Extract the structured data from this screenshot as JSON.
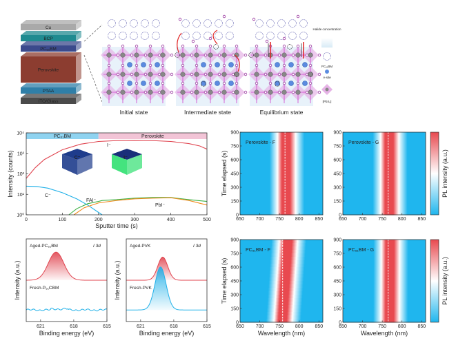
{
  "stack": {
    "layers": [
      {
        "label": "Cu",
        "color": "#a9a9a9"
      },
      {
        "label": "BCP",
        "color": "#1f8b90"
      },
      {
        "label": "PC₆₁BM",
        "color": "#3b4a8c"
      },
      {
        "label": "Perovskite",
        "color": "#8c3d30"
      },
      {
        "label": "PTAA",
        "color": "#2f7fa8"
      },
      {
        "label": "ITO/Glass",
        "color": "#4a4a4a"
      }
    ]
  },
  "schematic": {
    "states": [
      "Initial state",
      "Intermediate state",
      "Equilibrium state"
    ],
    "legend": {
      "halide": "Halide concentration",
      "pcbm": "PC₆₁BM",
      "asite": "A-site",
      "octahedron": "[PbX₆]"
    }
  },
  "chart_data": [
    {
      "type": "line",
      "xlabel": "Sputter time (s)",
      "ylabel": "Intensity (counts)",
      "xlim": [
        0,
        500
      ],
      "xticks": [
        "0",
        "100",
        "200",
        "300",
        "400",
        "500"
      ],
      "ylim": [
        1,
        10000
      ],
      "yscale": "log",
      "yticks": [
        "10⁰",
        "10¹",
        "10²",
        "10³",
        "10⁴"
      ],
      "bands": [
        {
          "label": "PC₆₁BM",
          "range": [
            0,
            200
          ],
          "color": "#8fd3f0"
        },
        {
          "label": "Perovskite",
          "range": [
            200,
            500
          ],
          "color": "#f2c4d6"
        }
      ],
      "insets": [
        "C⁻",
        "I⁻"
      ],
      "series": [
        {
          "name": "I⁻",
          "color": "#e0444f",
          "points": [
            [
              0,
              60
            ],
            [
              25,
              200
            ],
            [
              50,
              500
            ],
            [
              100,
              1500
            ],
            [
              150,
              2800
            ],
            [
              200,
              3800
            ],
            [
              250,
              4200
            ],
            [
              300,
              4300
            ],
            [
              350,
              4200
            ],
            [
              400,
              3800
            ],
            [
              450,
              3000
            ],
            [
              480,
              2300
            ],
            [
              500,
              1600
            ]
          ]
        },
        {
          "name": "C⁻",
          "color": "#1fb0e8",
          "points": [
            [
              0,
              25
            ],
            [
              30,
              24
            ],
            [
              60,
              20
            ],
            [
              100,
              12
            ],
            [
              140,
              6
            ],
            [
              170,
              3
            ],
            [
              195,
              1.5
            ],
            [
              210,
              1
            ]
          ]
        },
        {
          "name": "FAI⁻",
          "color": "#3cb043",
          "points": [
            [
              118,
              1
            ],
            [
              140,
              2
            ],
            [
              170,
              3.5
            ],
            [
              200,
              4.5
            ],
            [
              210,
              5
            ],
            [
              250,
              5.5
            ],
            [
              300,
              6.5
            ],
            [
              350,
              7
            ],
            [
              400,
              7
            ],
            [
              450,
              5.5
            ],
            [
              500,
              4.5
            ]
          ]
        },
        {
          "name": "PbI⁻",
          "color": "#f08a1c",
          "points": [
            [
              132,
              1
            ],
            [
              160,
              2.2
            ],
            [
              200,
              3.8
            ],
            [
              250,
              5
            ],
            [
              300,
              6
            ],
            [
              350,
              6.5
            ],
            [
              400,
              6.8
            ],
            [
              450,
              5
            ],
            [
              500,
              3
            ]
          ]
        }
      ]
    },
    {
      "type": "line",
      "xlabel": "Binding energy (eV)",
      "ylabel": "Intensity (a.u.)",
      "xlim": [
        622.3,
        615
      ],
      "xticks": [
        "621",
        "618",
        "615"
      ],
      "annotation": "I 3d",
      "series": [
        {
          "name": "Aged-PC₆₁BM",
          "color": "#e0444f",
          "peak_center": 619.6,
          "sigma": 0.7,
          "height": 0.85
        },
        {
          "name": "Fresh-P₆₁CBM",
          "color": "#1fb0e8",
          "peak_center": null,
          "sigma": null,
          "height": 0
        }
      ]
    },
    {
      "type": "line",
      "xlabel": "Binding energy (eV)",
      "ylabel": "Intensity (a.u.)",
      "xlim": [
        622.3,
        615
      ],
      "xticks": [
        "621",
        "618",
        "615"
      ],
      "annotation": "I 3d",
      "series": [
        {
          "name": "Aged-PVK",
          "color": "#e0444f",
          "peak_center": 619.0,
          "sigma": 0.45,
          "height": 0.7
        },
        {
          "name": "Fresh-PVK",
          "color": "#1fb0e8",
          "peak_center": 619.2,
          "sigma": 0.5,
          "height": 1.3
        }
      ]
    },
    {
      "type": "heatmap",
      "title": "Perovskite - F",
      "xlabel": "",
      "ylabel": "Time elapsed (s)",
      "xlim": [
        650,
        860
      ],
      "ylim": [
        0,
        900
      ],
      "peak_nm_start": 765,
      "peak_nm_end": 765,
      "dashed_line_nm": 764
    },
    {
      "type": "heatmap",
      "title": "Perovskite - G",
      "xlabel": "",
      "ylabel": "",
      "xlim": [
        650,
        860
      ],
      "ylim": [
        0,
        900
      ],
      "peak_nm_start": 766,
      "peak_nm_end": 766,
      "dashed_line_nm": 765
    },
    {
      "type": "heatmap",
      "title": "PC₆₁BM - F",
      "xlabel": "Wavelength (nm)",
      "ylabel": "Time elapsed (s)",
      "xlim": [
        650,
        860
      ],
      "ylim": [
        0,
        900
      ],
      "peak_nm_start": 756,
      "peak_nm_end": 770,
      "dashed_line_nm": 758
    },
    {
      "type": "heatmap",
      "title": "PC₆₁BM - G",
      "xlabel": "Wavelength (nm)",
      "ylabel": "",
      "xlim": [
        650,
        860
      ],
      "ylim": [
        0,
        900
      ],
      "peak_nm_start": 767,
      "peak_nm_end": 768,
      "dashed_line_nm": 765
    }
  ],
  "heatmap_common": {
    "xticks": [
      "650",
      "700",
      "750",
      "800",
      "850"
    ],
    "yticks": [
      "0",
      "150",
      "300",
      "450",
      "600",
      "750",
      "900"
    ],
    "colorbar_label": "PL intensity (a.u.)",
    "colors": {
      "low": "#1fb6ee",
      "mid": "#ffffff",
      "high": "#e8494f"
    }
  }
}
